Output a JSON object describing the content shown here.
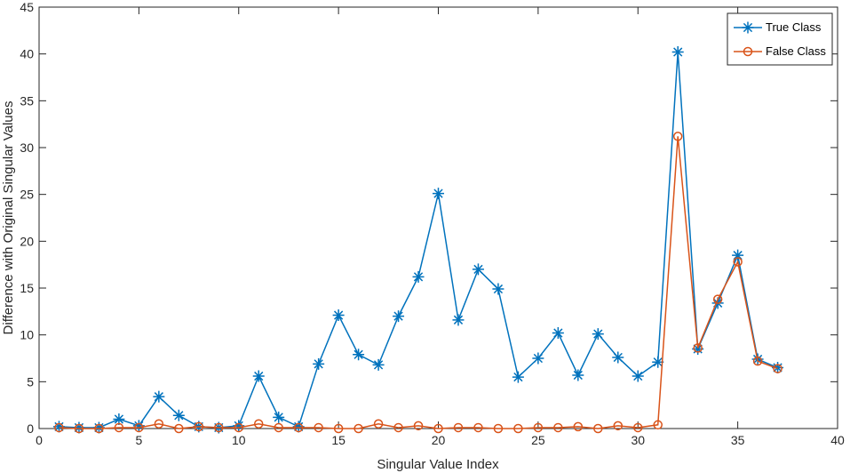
{
  "chart_data": {
    "type": "line",
    "title": "",
    "xlabel": "Singular Value Index",
    "ylabel": "Difference with Original Singular Values",
    "xlim": [
      0,
      40
    ],
    "ylim": [
      0,
      45
    ],
    "xticks": [
      0,
      5,
      10,
      15,
      20,
      25,
      30,
      35,
      40
    ],
    "yticks": [
      0,
      5,
      10,
      15,
      20,
      25,
      30,
      35,
      40,
      45
    ],
    "grid": false,
    "legend_position": "top-right",
    "x": [
      1,
      2,
      3,
      4,
      5,
      6,
      7,
      8,
      9,
      10,
      11,
      12,
      13,
      14,
      15,
      16,
      17,
      18,
      19,
      20,
      21,
      22,
      23,
      24,
      25,
      26,
      27,
      28,
      29,
      30,
      31,
      32,
      33,
      34,
      35,
      36,
      37
    ],
    "series": [
      {
        "name": "True Class",
        "color": "#0072BD",
        "marker": "asterisk",
        "values": [
          0.2,
          0.1,
          0.1,
          1.0,
          0.3,
          3.4,
          1.4,
          0.2,
          0.1,
          0.3,
          5.6,
          1.2,
          0.2,
          6.9,
          12.1,
          7.9,
          6.8,
          12.0,
          16.2,
          25.1,
          11.6,
          17.0,
          14.9,
          5.5,
          7.5,
          10.2,
          5.7,
          10.1,
          7.6,
          5.6,
          7.1,
          40.2,
          8.5,
          13.4,
          18.5,
          7.4,
          6.5
        ]
      },
      {
        "name": "False Class",
        "color": "#D95319",
        "marker": "circle",
        "values": [
          0.1,
          0.0,
          0.0,
          0.1,
          0.1,
          0.5,
          0.0,
          0.2,
          0.1,
          0.1,
          0.5,
          0.1,
          0.1,
          0.1,
          0.0,
          0.0,
          0.5,
          0.1,
          0.3,
          0.0,
          0.1,
          0.1,
          0.0,
          0.0,
          0.1,
          0.1,
          0.2,
          0.0,
          0.3,
          0.1,
          0.4,
          31.2,
          8.6,
          13.8,
          17.8,
          7.2,
          6.4
        ]
      }
    ]
  }
}
